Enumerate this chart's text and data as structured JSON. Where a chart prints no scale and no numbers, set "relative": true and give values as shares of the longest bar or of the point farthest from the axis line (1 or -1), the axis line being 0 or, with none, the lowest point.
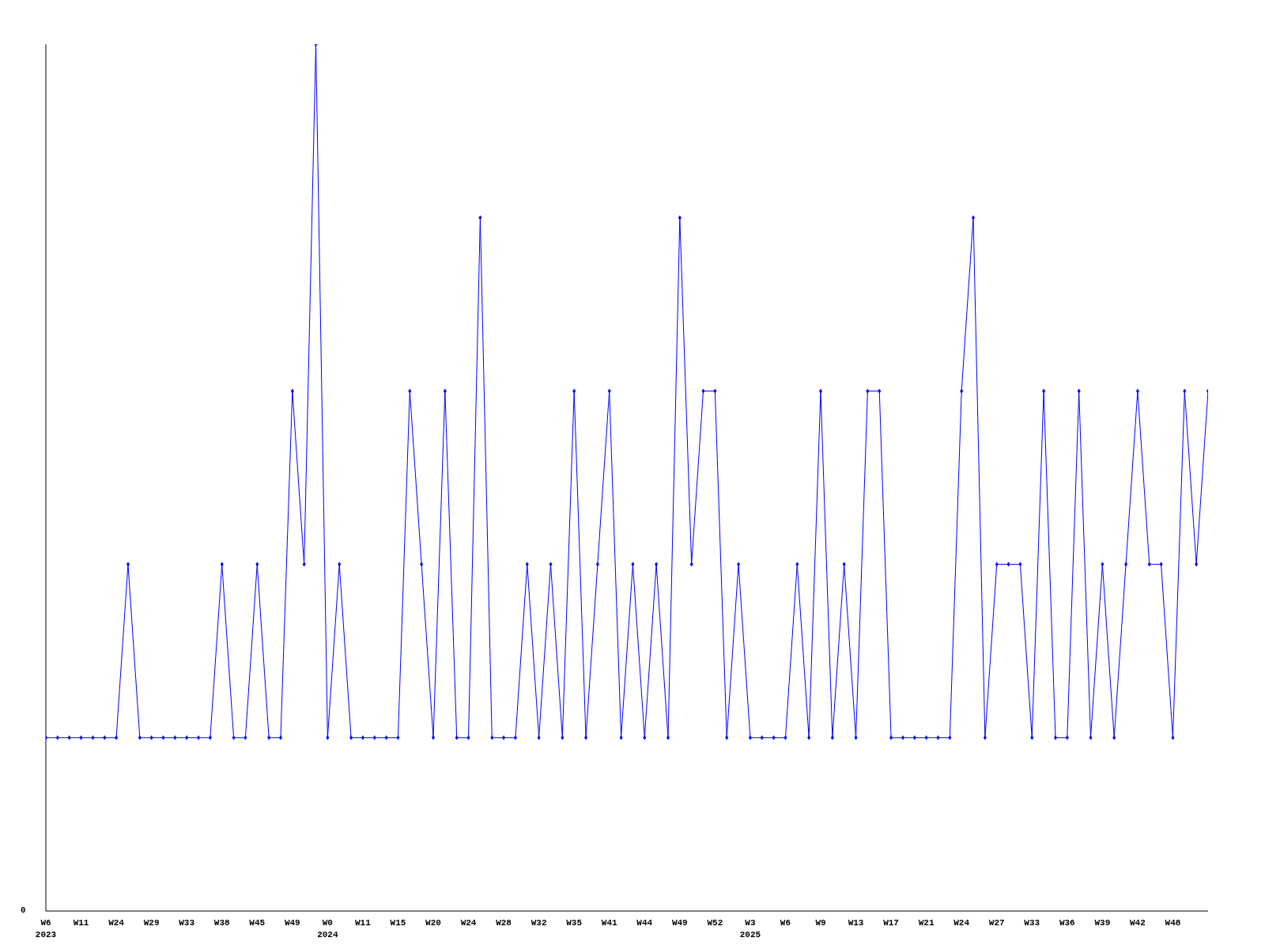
{
  "chart_data": {
    "type": "line",
    "relative": true,
    "color": "#0000ff",
    "marker": "diamond",
    "grid": false,
    "legend": false,
    "annotations": [
      "0"
    ],
    "categories": [
      "W6\n2023",
      null,
      null,
      "W11",
      null,
      null,
      "W24",
      null,
      null,
      "W29",
      null,
      null,
      "W33",
      null,
      null,
      "W38",
      null,
      null,
      "W45",
      null,
      null,
      "W49",
      null,
      null,
      "W0\n2024",
      null,
      null,
      "W11",
      null,
      null,
      "W15",
      null,
      null,
      "W20",
      null,
      null,
      "W24",
      null,
      null,
      "W28",
      null,
      null,
      "W32",
      null,
      null,
      "W35",
      null,
      null,
      "W41",
      null,
      null,
      "W44",
      null,
      null,
      "W49",
      null,
      null,
      "W52",
      null,
      null,
      "W3\n2025",
      null,
      null,
      "W6",
      null,
      null,
      "W9",
      null,
      null,
      "W13",
      null,
      null,
      "W17",
      null,
      null,
      "W21",
      null,
      null,
      "W24",
      null,
      null,
      "W27",
      null,
      null,
      "W33",
      null,
      null,
      "W36",
      null,
      null,
      "W39",
      null,
      null,
      "W42",
      null,
      null,
      "W48",
      null,
      null,
      null
    ],
    "values": [
      0.2,
      0.2,
      0.2,
      0.2,
      0.2,
      0.2,
      0.2,
      0.4,
      0.2,
      0.2,
      0.2,
      0.2,
      0.2,
      0.2,
      0.2,
      0.4,
      0.2,
      0.2,
      0.4,
      0.2,
      0.2,
      0.6,
      0.4,
      1,
      0.2,
      0.4,
      0.2,
      0.2,
      0.2,
      0.2,
      0.2,
      0.6,
      0.4,
      0.2,
      0.6,
      0.2,
      0.2,
      0.8,
      0.2,
      0.2,
      0.2,
      0.4,
      0.2,
      0.4,
      0.2,
      0.6,
      0.2,
      0.4,
      0.6,
      0.2,
      0.4,
      0.2,
      0.4,
      0.2,
      0.8,
      0.4,
      0.6,
      0.6,
      0.2,
      0.4,
      0.2,
      0.2,
      0.2,
      0.2,
      0.4,
      0.2,
      0.6,
      0.2,
      0.4,
      0.2,
      0.6,
      0.6,
      0.2,
      0.2,
      0.2,
      0.2,
      0.2,
      0.2,
      0.6,
      0.8,
      0.2,
      0.4,
      0.4,
      0.4,
      0.2,
      0.6,
      0.2,
      0.2,
      0.6,
      0.2,
      0.4,
      0.2,
      0.4,
      0.6,
      0.4,
      0.4,
      0.2,
      0.6,
      0.4,
      0.6
    ]
  }
}
